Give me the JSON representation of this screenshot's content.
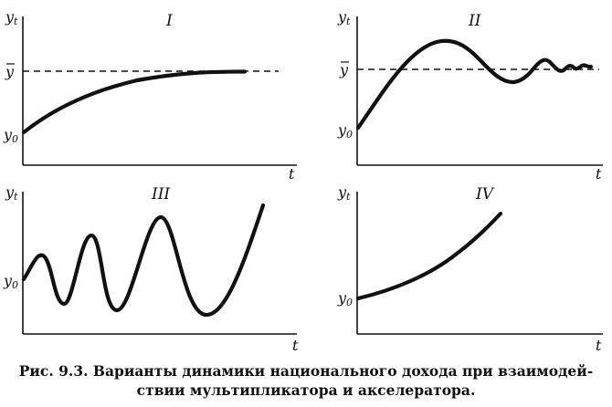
{
  "chart_data": [
    {
      "type": "line",
      "title": "I",
      "ylabel": "y_t",
      "xlabel": "t",
      "y_ticks": [
        "ȳ",
        "y0"
      ],
      "curve": "monotonic convergence to equilibrium",
      "equilibrium_line": true,
      "x": [
        0,
        1,
        2,
        3,
        4,
        5,
        6,
        7,
        8,
        9,
        10
      ],
      "values": [
        0.0,
        0.36,
        0.6,
        0.76,
        0.86,
        0.92,
        0.96,
        0.98,
        0.99,
        1.0,
        1.0
      ]
    },
    {
      "type": "line",
      "title": "II",
      "ylabel": "y_t",
      "xlabel": "t",
      "y_ticks": [
        "ȳ",
        "y0"
      ],
      "curve": "damped oscillation around equilibrium",
      "equilibrium_line": true,
      "x": [
        0,
        1,
        2,
        3,
        4,
        5,
        6,
        7,
        8,
        9,
        10
      ],
      "values": [
        0.0,
        0.55,
        1.25,
        1.35,
        1.15,
        0.82,
        0.95,
        1.12,
        0.96,
        1.04,
        1.0
      ]
    },
    {
      "type": "line",
      "title": "III",
      "ylabel": "y_t",
      "xlabel": "t",
      "y_ticks": [
        "y0"
      ],
      "curve": "explosive oscillations",
      "x": [
        0,
        1,
        2,
        3,
        4,
        5,
        6,
        7,
        8,
        9,
        10
      ],
      "values": [
        1.0,
        1.3,
        0.2,
        1.55,
        0.05,
        1.8,
        -0.05,
        2.3,
        -0.1,
        0.8,
        2.6
      ]
    },
    {
      "type": "line",
      "title": "IV",
      "ylabel": "y_t",
      "xlabel": "t",
      "y_ticks": [
        "y0"
      ],
      "curve": "monotonic explosive growth",
      "x": [
        0,
        1,
        2,
        3,
        4,
        5,
        6,
        7,
        8,
        9,
        10
      ],
      "values": [
        0.0,
        0.1,
        0.22,
        0.37,
        0.55,
        0.77,
        1.03,
        1.34,
        1.7,
        2.1,
        2.55
      ]
    }
  ],
  "caption": {
    "line1": "Рис. 9.3.  Варианты динамики национального дохода при взаимодей-",
    "line2": "ствии мультипликатора и акселератора."
  },
  "labels": {
    "yt": "y",
    "yt_sub": "t",
    "ybar": "y",
    "y0": "y",
    "y0_sub": "0",
    "t": "t"
  }
}
